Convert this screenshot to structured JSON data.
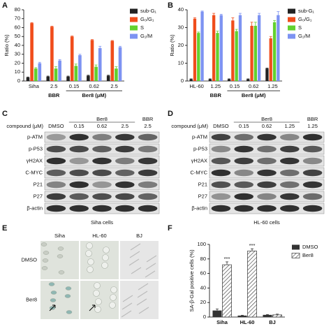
{
  "panel_labels": [
    "A",
    "B",
    "C",
    "D",
    "E",
    "F"
  ],
  "chart_data": [
    {
      "type": "bar",
      "y_label": "Ratio (%)",
      "categories": [
        "Siha",
        "2.5",
        "0.15",
        "0.62",
        "2.5"
      ],
      "group_labels": [
        "BBR",
        "Ber8 (μM)"
      ],
      "ylim": [
        0,
        80
      ],
      "yticks": [
        0,
        10,
        20,
        30,
        40,
        50,
        60,
        70,
        80
      ],
      "series": [
        {
          "name": "sub-G₁",
          "color": "#222222",
          "values": [
            4,
            5,
            5,
            6,
            6
          ],
          "errors": [
            0.5,
            0.5,
            0.5,
            0.5,
            0.5
          ]
        },
        {
          "name": "G₀/G₁",
          "color": "#f04d1c",
          "values": [
            65,
            61,
            50,
            46,
            45
          ],
          "errors": [
            0.5,
            0.5,
            0.5,
            0.5,
            0.5
          ]
        },
        {
          "name": "S",
          "color": "#62d12e",
          "values": [
            14,
            14,
            17,
            16,
            14
          ],
          "errors": [
            1,
            2,
            2,
            2,
            2
          ]
        },
        {
          "name": "G₂/M",
          "color": "#7d93f2",
          "values": [
            20,
            23,
            29,
            37,
            38
          ],
          "errors": [
            1,
            1,
            1,
            2,
            1
          ]
        }
      ]
    },
    {
      "type": "bar",
      "y_label": "Ratio (%)",
      "categories": [
        "HL-60",
        "1.25",
        "0.15",
        "0.62",
        "1.25"
      ],
      "group_labels": [
        "BBR",
        "Ber8 (μM)"
      ],
      "ylim": [
        0,
        40
      ],
      "yticks": [
        0,
        10,
        20,
        30,
        40
      ],
      "series": [
        {
          "name": "sub-G₁",
          "color": "#222222",
          "values": [
            1,
            1,
            1,
            1,
            7
          ],
          "errors": [
            0.2,
            0.2,
            0.2,
            0.2,
            0.3
          ]
        },
        {
          "name": "G₀/G₁",
          "color": "#f04d1c",
          "values": [
            35,
            37,
            34,
            31,
            24
          ],
          "errors": [
            0.5,
            1,
            1.5,
            2,
            1
          ]
        },
        {
          "name": "S",
          "color": "#62d12e",
          "values": [
            27,
            27,
            28,
            31,
            33
          ],
          "errors": [
            0.5,
            1,
            1,
            2,
            1
          ]
        },
        {
          "name": "G₂/M",
          "color": "#7d93f2",
          "values": [
            39,
            37,
            37,
            37,
            37
          ],
          "errors": [
            0.3,
            0.5,
            1,
            1,
            2
          ]
        }
      ]
    },
    {
      "type": "bar",
      "y_label": "SA-β-Gal positive cells (%)",
      "categories": [
        "Siha",
        "HL-60",
        "BJ"
      ],
      "ylim": [
        0,
        100
      ],
      "yticks": [
        0,
        20,
        40,
        60,
        80,
        100
      ],
      "annotations": [
        "***",
        "***"
      ],
      "series": [
        {
          "name": "DMSO",
          "color": "#333333",
          "values": [
            9,
            2,
            3
          ],
          "errors": [
            2,
            0.5,
            0.5
          ]
        },
        {
          "name": "Ber8",
          "color": "#333333",
          "pattern": "hatch",
          "values": [
            72,
            91,
            3
          ],
          "errors": [
            4,
            3,
            1
          ]
        }
      ]
    }
  ],
  "blots": [
    {
      "compound_label": "compound (μM)",
      "lanes": [
        "DMSO",
        "0.15",
        "0.62",
        "2.5",
        "2.5"
      ],
      "group_labels": [
        "Ber8",
        "BBR"
      ],
      "rows": [
        "p-ATM",
        "p-P53",
        "γH2AX",
        "C-MYC",
        "P21",
        "P27",
        "β-actin"
      ],
      "caption": "Siha cells"
    },
    {
      "compound_label": "compound (μM)",
      "lanes": [
        "DMSO",
        "0.15",
        "0.62",
        "1.25",
        "1.25"
      ],
      "group_labels": [
        "Ber8",
        "BBR"
      ],
      "rows": [
        "p-ATM",
        "p-P53",
        "γH2AX",
        "C-MYC",
        "P21",
        "P27",
        "β-actin"
      ],
      "caption": "HL-60 cells"
    }
  ],
  "micrographs": {
    "columns": [
      "Siha",
      "HL-60",
      "BJ"
    ],
    "rows": [
      "DMSO",
      "Ber8"
    ]
  }
}
